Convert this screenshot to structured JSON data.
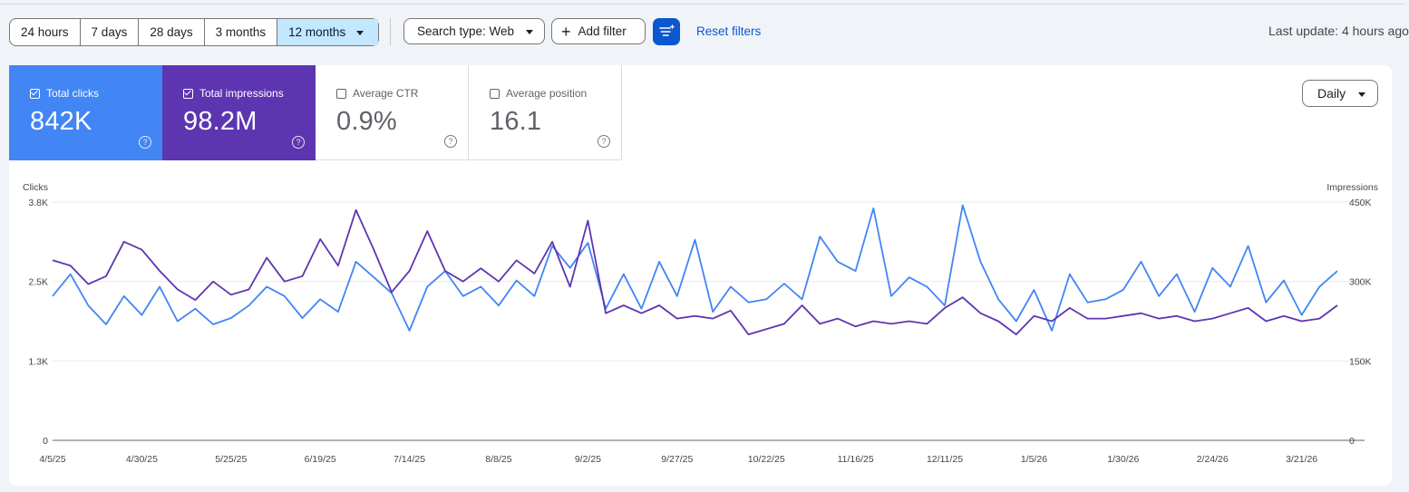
{
  "toolbar": {
    "date_ranges": [
      "24 hours",
      "7 days",
      "28 days",
      "3 months",
      "12 months"
    ],
    "active_range": "12 months",
    "search_type": "Search type: Web",
    "add_filter": "Add filter",
    "reset_filters": "Reset filters",
    "last_update": "Last update: 4 hours ago",
    "accent_color": "#0b57d0"
  },
  "metrics": [
    {
      "label": "Total clicks",
      "value": "842K",
      "checked": true,
      "color": "#4285f4"
    },
    {
      "label": "Total impressions",
      "value": "98.2M",
      "checked": true,
      "color": "#5e35b1"
    },
    {
      "label": "Average CTR",
      "value": "0.9%",
      "checked": false
    },
    {
      "label": "Average position",
      "value": "16.1",
      "checked": false
    }
  ],
  "granularity": "Daily",
  "chart_data": {
    "type": "line",
    "granularity": "daily",
    "left_axis": {
      "label": "Clicks",
      "ticks": [
        "3.8K",
        "2.5K",
        "1.3K",
        "0"
      ],
      "range": [
        0,
        3800
      ]
    },
    "right_axis": {
      "label": "Impressions",
      "ticks": [
        "450K",
        "300K",
        "150K",
        "0"
      ],
      "range": [
        0,
        450000
      ]
    },
    "x_tick_labels": [
      "4/5/25",
      "4/30/25",
      "5/25/25",
      "6/19/25",
      "7/14/25",
      "8/8/25",
      "9/2/25",
      "9/27/25",
      "10/22/25",
      "11/16/25",
      "12/11/25",
      "1/5/26",
      "1/30/26",
      "2/24/26",
      "3/21/26"
    ],
    "grid": true,
    "series": [
      {
        "name": "Total clicks",
        "axis": "left",
        "color": "#4285f4",
        "points": [
          [
            "4/5/25",
            2300
          ],
          [
            "4/10/25",
            2650
          ],
          [
            "4/15/25",
            2150
          ],
          [
            "4/20/25",
            1850
          ],
          [
            "4/25/25",
            2300
          ],
          [
            "4/30/25",
            2000
          ],
          [
            "5/5/25",
            2450
          ],
          [
            "5/10/25",
            1900
          ],
          [
            "5/15/25",
            2100
          ],
          [
            "5/20/25",
            1850
          ],
          [
            "5/25/25",
            1950
          ],
          [
            "5/30/25",
            2150
          ],
          [
            "6/4/25",
            2450
          ],
          [
            "6/9/25",
            2300
          ],
          [
            "6/14/25",
            1950
          ],
          [
            "6/19/25",
            2250
          ],
          [
            "6/24/25",
            2050
          ],
          [
            "6/29/25",
            2850
          ],
          [
            "7/4/25",
            2600
          ],
          [
            "7/9/25",
            2350
          ],
          [
            "7/14/25",
            1750
          ],
          [
            "7/19/25",
            2450
          ],
          [
            "7/24/25",
            2700
          ],
          [
            "7/29/25",
            2300
          ],
          [
            "8/3/25",
            2450
          ],
          [
            "8/8/25",
            2150
          ],
          [
            "8/13/25",
            2550
          ],
          [
            "8/18/25",
            2300
          ],
          [
            "8/23/25",
            3100
          ],
          [
            "8/28/25",
            2750
          ],
          [
            "9/2/25",
            3150
          ],
          [
            "9/7/25",
            2100
          ],
          [
            "9/12/25",
            2650
          ],
          [
            "9/17/25",
            2100
          ],
          [
            "9/22/25",
            2850
          ],
          [
            "9/27/25",
            2300
          ],
          [
            "10/2/25",
            3200
          ],
          [
            "10/7/25",
            2050
          ],
          [
            "10/12/25",
            2450
          ],
          [
            "10/17/25",
            2200
          ],
          [
            "10/22/25",
            2250
          ],
          [
            "10/27/25",
            2500
          ],
          [
            "11/1/25",
            2250
          ],
          [
            "11/6/25",
            3250
          ],
          [
            "11/11/25",
            2850
          ],
          [
            "11/16/25",
            2700
          ],
          [
            "11/21/25",
            3700
          ],
          [
            "11/26/25",
            2300
          ],
          [
            "12/1/25",
            2600
          ],
          [
            "12/6/25",
            2450
          ],
          [
            "12/11/25",
            2150
          ],
          [
            "12/16/25",
            3750
          ],
          [
            "12/21/25",
            2850
          ],
          [
            "12/26/25",
            2250
          ],
          [
            "12/31/25",
            1900
          ],
          [
            "1/5/26",
            2400
          ],
          [
            "1/10/26",
            1750
          ],
          [
            "1/15/26",
            2650
          ],
          [
            "1/20/26",
            2200
          ],
          [
            "1/25/26",
            2250
          ],
          [
            "1/30/26",
            2400
          ],
          [
            "2/4/26",
            2850
          ],
          [
            "2/9/26",
            2300
          ],
          [
            "2/14/26",
            2650
          ],
          [
            "2/19/26",
            2050
          ],
          [
            "2/24/26",
            2750
          ],
          [
            "3/1/26",
            2450
          ],
          [
            "3/6/26",
            3100
          ],
          [
            "3/11/26",
            2200
          ],
          [
            "3/16/26",
            2550
          ],
          [
            "3/21/26",
            2000
          ],
          [
            "3/26/26",
            2450
          ],
          [
            "3/31/26",
            2700
          ]
        ]
      },
      {
        "name": "Total impressions",
        "axis": "right",
        "color": "#5e35b1",
        "points": [
          [
            "4/5/25",
            340000
          ],
          [
            "4/10/25",
            330000
          ],
          [
            "4/15/25",
            295000
          ],
          [
            "4/20/25",
            310000
          ],
          [
            "4/25/25",
            375000
          ],
          [
            "4/30/25",
            360000
          ],
          [
            "5/5/25",
            320000
          ],
          [
            "5/10/25",
            285000
          ],
          [
            "5/15/25",
            265000
          ],
          [
            "5/20/25",
            300000
          ],
          [
            "5/25/25",
            275000
          ],
          [
            "5/30/25",
            285000
          ],
          [
            "6/4/25",
            345000
          ],
          [
            "6/9/25",
            300000
          ],
          [
            "6/14/25",
            310000
          ],
          [
            "6/19/25",
            380000
          ],
          [
            "6/24/25",
            330000
          ],
          [
            "6/29/25",
            435000
          ],
          [
            "7/4/25",
            360000
          ],
          [
            "7/9/25",
            280000
          ],
          [
            "7/14/25",
            320000
          ],
          [
            "7/19/25",
            395000
          ],
          [
            "7/24/25",
            320000
          ],
          [
            "7/29/25",
            300000
          ],
          [
            "8/3/25",
            325000
          ],
          [
            "8/8/25",
            300000
          ],
          [
            "8/13/25",
            340000
          ],
          [
            "8/18/25",
            315000
          ],
          [
            "8/23/25",
            375000
          ],
          [
            "8/28/25",
            290000
          ],
          [
            "9/2/25",
            415000
          ],
          [
            "9/7/25",
            240000
          ],
          [
            "9/12/25",
            255000
          ],
          [
            "9/17/25",
            240000
          ],
          [
            "9/22/25",
            255000
          ],
          [
            "9/27/25",
            230000
          ],
          [
            "10/2/25",
            235000
          ],
          [
            "10/7/25",
            230000
          ],
          [
            "10/12/25",
            245000
          ],
          [
            "10/17/25",
            200000
          ],
          [
            "10/22/25",
            210000
          ],
          [
            "10/27/25",
            220000
          ],
          [
            "11/1/25",
            255000
          ],
          [
            "11/6/25",
            220000
          ],
          [
            "11/11/25",
            230000
          ],
          [
            "11/16/25",
            215000
          ],
          [
            "11/21/25",
            225000
          ],
          [
            "11/26/25",
            220000
          ],
          [
            "12/1/25",
            225000
          ],
          [
            "12/6/25",
            220000
          ],
          [
            "12/11/25",
            250000
          ],
          [
            "12/16/25",
            270000
          ],
          [
            "12/21/25",
            240000
          ],
          [
            "12/26/25",
            225000
          ],
          [
            "12/31/25",
            200000
          ],
          [
            "1/5/26",
            235000
          ],
          [
            "1/10/26",
            225000
          ],
          [
            "1/15/26",
            250000
          ],
          [
            "1/20/26",
            230000
          ],
          [
            "1/25/26",
            230000
          ],
          [
            "1/30/26",
            235000
          ],
          [
            "2/4/26",
            240000
          ],
          [
            "2/9/26",
            230000
          ],
          [
            "2/14/26",
            235000
          ],
          [
            "2/19/26",
            225000
          ],
          [
            "2/24/26",
            230000
          ],
          [
            "3/1/26",
            240000
          ],
          [
            "3/6/26",
            250000
          ],
          [
            "3/11/26",
            225000
          ],
          [
            "3/16/26",
            235000
          ],
          [
            "3/21/26",
            225000
          ],
          [
            "3/26/26",
            230000
          ],
          [
            "3/31/26",
            255000
          ]
        ]
      }
    ]
  }
}
